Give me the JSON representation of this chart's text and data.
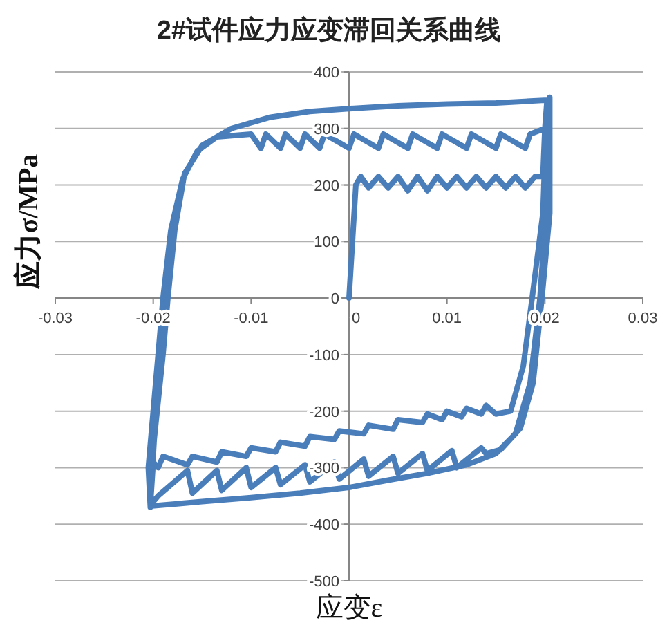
{
  "chart_data": {
    "type": "line",
    "title": "2#试件应力应变滞回关系曲线",
    "xlabel": "应变ε",
    "ylabel": "应力σ/MPa",
    "xlim": [
      -0.03,
      0.03
    ],
    "ylim": [
      -500,
      400
    ],
    "xticks": [
      -0.03,
      -0.02,
      -0.01,
      0,
      0.01,
      0.02,
      0.03
    ],
    "yticks": [
      -500,
      -400,
      -300,
      -200,
      -100,
      0,
      100,
      200,
      300,
      400
    ],
    "grid": "y",
    "x": [
      0,
      0.0007,
      0.0012,
      0.002,
      0.003,
      0.004,
      0.005,
      0.006,
      0.007,
      0.008,
      0.009,
      0.01,
      0.011,
      0.012,
      0.013,
      0.014,
      0.015,
      0.016,
      0.017,
      0.018,
      0.019,
      0.0198,
      0.02,
      0.0202,
      0.0198,
      0.0187,
      0.0178,
      0.0165,
      0.015,
      0.014,
      0.0135,
      0.012,
      0.0115,
      0.01,
      0.0095,
      0.008,
      0.0075,
      0.005,
      0.0045,
      0.002,
      0.0015,
      -0.001,
      -0.0015,
      -0.004,
      -0.0045,
      -0.007,
      -0.0075,
      -0.01,
      -0.0105,
      -0.013,
      -0.0135,
      -0.016,
      -0.0165,
      -0.019,
      -0.0195,
      -0.02,
      -0.0203,
      -0.0199,
      -0.019,
      -0.0185,
      -0.0178,
      -0.0168,
      -0.015,
      -0.012,
      -0.008,
      -0.004,
      0,
      0.005,
      0.01,
      0.015,
      0.0203,
      0.0203,
      0.0195,
      0.0185,
      0.017,
      0.015,
      0.012,
      0.008,
      0.004,
      0,
      -0.005,
      -0.01,
      -0.015,
      -0.0203,
      -0.0205,
      -0.0195,
      -0.019,
      -0.0182,
      -0.017,
      -0.0155,
      -0.0135,
      -0.01,
      -0.009,
      -0.0085,
      -0.007,
      -0.0065,
      -0.005,
      -0.0045,
      -0.003,
      -0.0025,
      0,
      0.0005,
      0.003,
      0.0035,
      0.006,
      0.0065,
      0.009,
      0.0095,
      0.012,
      0.0125,
      0.015,
      0.0155,
      0.018,
      0.0185,
      0.02,
      0.0205,
      0.0205,
      0.0197,
      0.0188,
      0.0175,
      0.0155,
      0.014,
      0.0135,
      0.011,
      0.0105,
      0.008,
      0.0075,
      0.005,
      0.0045,
      0.002,
      0.0015,
      -0.001,
      -0.0015,
      -0.004,
      -0.0045,
      -0.007,
      -0.0075,
      -0.01,
      -0.0105,
      -0.013,
      -0.0135,
      -0.016,
      -0.0165,
      -0.0195,
      -0.02
    ],
    "series": [
      {
        "color": "#4a7ebb",
        "values": [
          0,
          200,
          215,
          195,
          215,
          195,
          215,
          190,
          215,
          190,
          215,
          195,
          215,
          195,
          215,
          195,
          215,
          195,
          215,
          195,
          215,
          215,
          300,
          345,
          150,
          0,
          -120,
          -200,
          -205,
          -190,
          -205,
          -195,
          -210,
          -200,
          -215,
          -205,
          -220,
          -215,
          -232,
          -225,
          -240,
          -235,
          -250,
          -245,
          -262,
          -255,
          -272,
          -265,
          -280,
          -272,
          -290,
          -280,
          -295,
          -280,
          -300,
          -290,
          -370,
          -250,
          -100,
          0,
          120,
          220,
          270,
          300,
          320,
          330,
          335,
          340,
          343,
          345,
          350,
          200,
          0,
          -150,
          -240,
          -275,
          -295,
          -310,
          -322,
          -335,
          -345,
          -353,
          -360,
          -368,
          -300,
          -100,
          0,
          120,
          210,
          260,
          285,
          290,
          265,
          290,
          265,
          290,
          265,
          290,
          265,
          290,
          265,
          290,
          265,
          290,
          265,
          290,
          265,
          290,
          265,
          290,
          265,
          290,
          265,
          290,
          300,
          355,
          150,
          0,
          -150,
          -230,
          -268,
          -275,
          -265,
          -300,
          -270,
          -305,
          -275,
          -310,
          -280,
          -315,
          -285,
          -320,
          -290,
          -325,
          -295,
          -330,
          -300,
          -335,
          -300,
          -340,
          -305,
          -345,
          -305,
          -350,
          -360
        ]
      }
    ]
  }
}
